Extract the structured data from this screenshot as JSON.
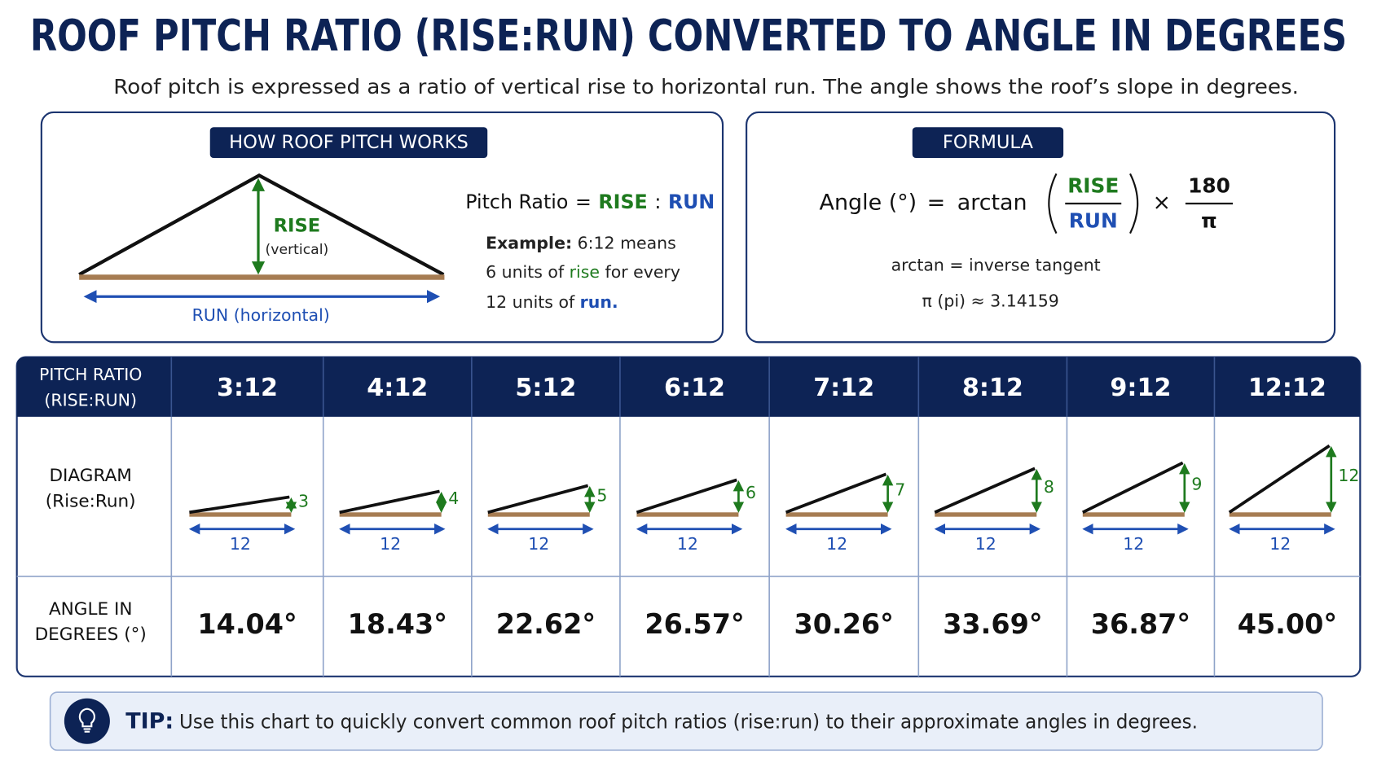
{
  "header": {
    "title": "ROOF PITCH RATIO (RISE:RUN) CONVERTED TO ANGLE IN DEGREES",
    "subtitle": "Roof pitch is expressed as a ratio of vertical rise to horizontal run. The angle shows the roof’s slope in degrees."
  },
  "how_it_works": {
    "title": "HOW ROOF PITCH WORKS",
    "rise_label": "RISE",
    "rise_note": "(vertical)",
    "run_label": "RUN (horizontal)",
    "ratio": [
      "Pitch Ratio",
      "=",
      "RISE",
      ":",
      "RUN"
    ],
    "example": [
      [
        "Example:",
        "6:12 means"
      ],
      [
        "6 units of",
        "rise",
        "for every"
      ],
      [
        "12 units of",
        "run."
      ]
    ]
  },
  "formula": {
    "title": "FORMULA",
    "lhs": "Angle (°)",
    "equals": "=",
    "function": "arctan",
    "numerator": "RISE",
    "denominator": "RUN",
    "times": "×",
    "factor_numerator": "180",
    "factor_denominator": "π",
    "notes": [
      "arctan = inverse tangent",
      "π (pi) ≈ 3.14159"
    ]
  },
  "table": {
    "row_headers": [
      [
        "PITCH RATIO",
        "(RISE:RUN)"
      ],
      [
        "DIAGRAM",
        "(Rise:Run)"
      ],
      [
        "ANGLE IN",
        "DEGREES (°)"
      ]
    ],
    "columns": [
      {
        "pitch": "3:12",
        "rise": 3,
        "run": 12,
        "angle": "14.04°"
      },
      {
        "pitch": "4:12",
        "rise": 4,
        "run": 12,
        "angle": "18.43°"
      },
      {
        "pitch": "5:12",
        "rise": 5,
        "run": 12,
        "angle": "22.62°"
      },
      {
        "pitch": "6:12",
        "rise": 6,
        "run": 12,
        "angle": "26.57°"
      },
      {
        "pitch": "7:12",
        "rise": 7,
        "run": 12,
        "angle": "30.26°"
      },
      {
        "pitch": "8:12",
        "rise": 8,
        "run": 12,
        "angle": "33.69°"
      },
      {
        "pitch": "9:12",
        "rise": 9,
        "run": 12,
        "angle": "36.87°"
      },
      {
        "pitch": "12:12",
        "rise": 12,
        "run": 12,
        "angle": "45.00°"
      }
    ]
  },
  "tip": {
    "label": "TIP:",
    "text": "Use this chart to quickly convert common roof pitch ratios (rise:run) to their approximate angles in degrees."
  }
}
